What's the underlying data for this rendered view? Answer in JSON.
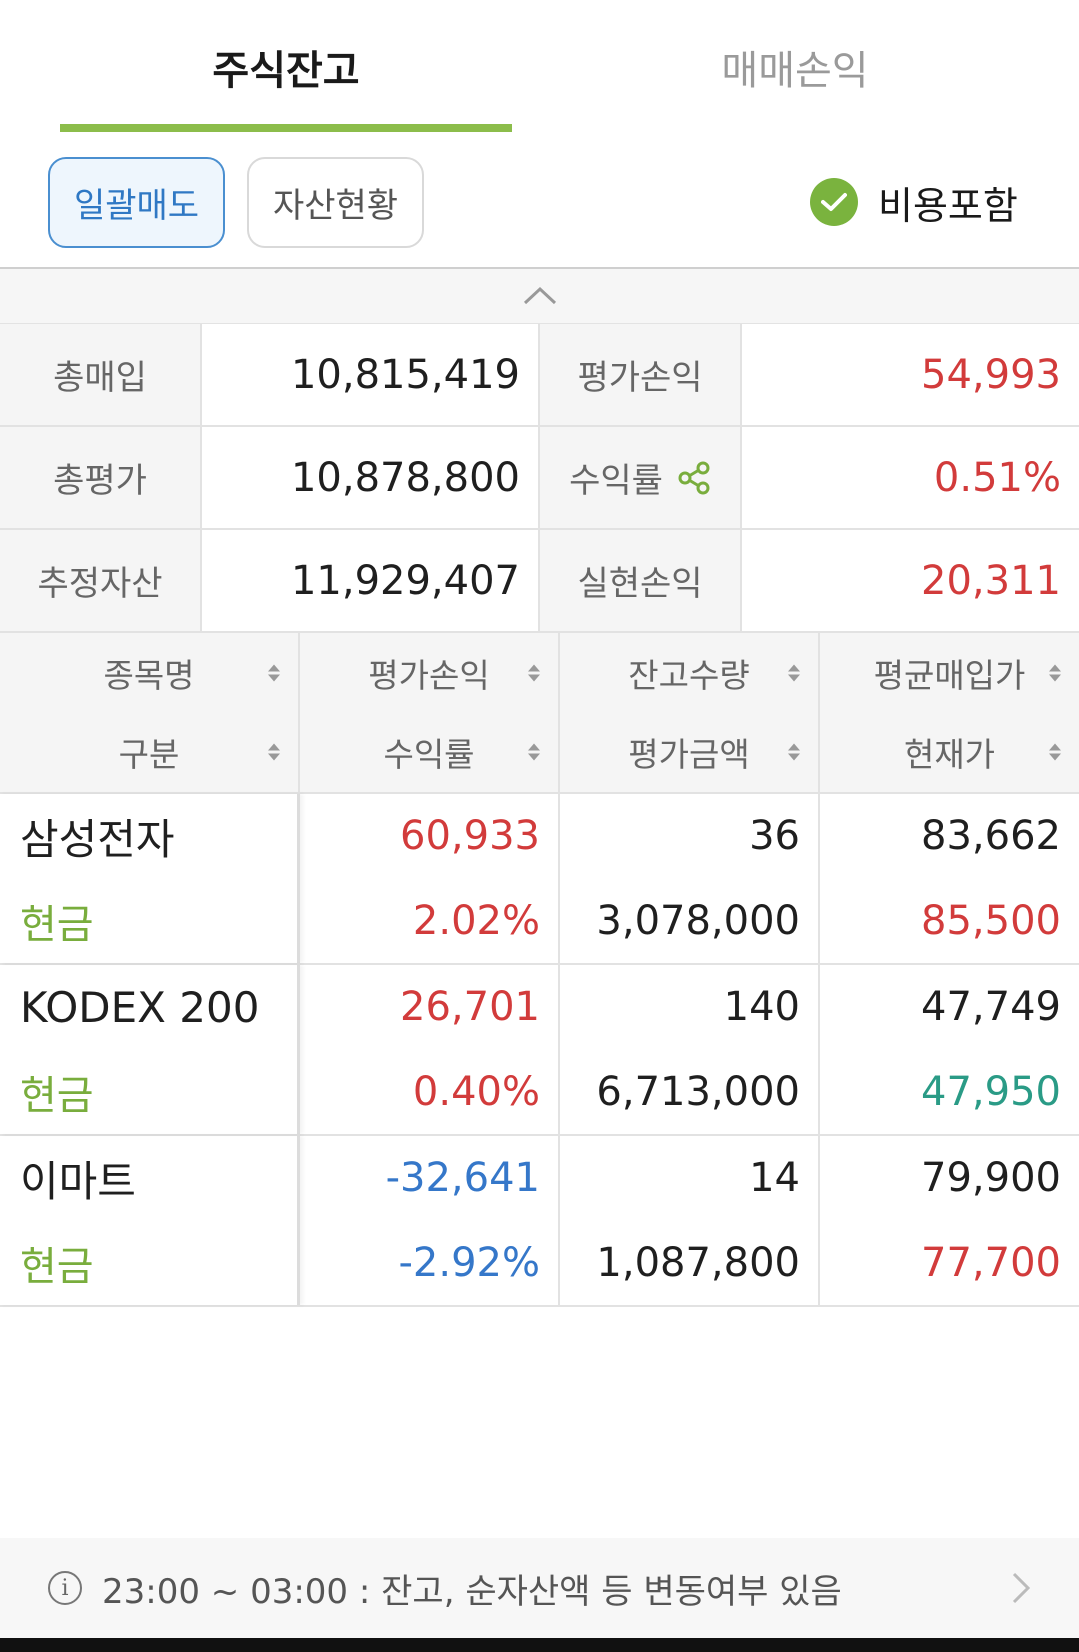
{
  "tabs": [
    {
      "label": "주식잔고",
      "active": true
    },
    {
      "label": "매매손익",
      "active": false
    }
  ],
  "buttons": {
    "bulk_sell": "일괄매도",
    "asset_status": "자산현황"
  },
  "fee_toggle": {
    "label": "비용포함",
    "checked": true
  },
  "summary": {
    "total_purchase": {
      "label": "총매입",
      "value": "10,815,419"
    },
    "eval_pl": {
      "label": "평가손익",
      "value": "54,993"
    },
    "total_eval": {
      "label": "총평가",
      "value": "10,878,800"
    },
    "return_rate": {
      "label": "수익률",
      "value": "0.51%"
    },
    "est_assets": {
      "label": "추정자산",
      "value": "11,929,407"
    },
    "realized_pl": {
      "label": "실현손익",
      "value": "20,311"
    }
  },
  "table": {
    "headers": {
      "name": "종목명",
      "category": "구분",
      "eval_pl": "평가손익",
      "return_rate": "수익률",
      "qty": "잔고수량",
      "eval_amount": "평가금액",
      "avg_price": "평균매입가",
      "cur_price": "현재가"
    },
    "rows": [
      {
        "name": "삼성전자",
        "category": "현금",
        "eval_pl": "60,933",
        "return_rate": "2.02%",
        "qty": "36",
        "eval_amount": "3,078,000",
        "avg_price": "83,662",
        "cur_price": "85,500"
      },
      {
        "name": "KODEX 200",
        "category": "현금",
        "eval_pl": "26,701",
        "return_rate": "0.40%",
        "qty": "140",
        "eval_amount": "6,713,000",
        "avg_price": "47,749",
        "cur_price": "47,950"
      },
      {
        "name": "이마트",
        "category": "현금",
        "eval_pl": "-32,641",
        "return_rate": "-2.92%",
        "qty": "14",
        "eval_amount": "1,087,800",
        "avg_price": "79,900",
        "cur_price": "77,700"
      }
    ]
  },
  "notice": {
    "text": "23:00 ~ 03:00 : 잔고, 순자산액 등 변동여부 있음"
  },
  "colors": {
    "accent_green": "#8cbd4b",
    "up_red": "#d23b3b",
    "down_blue": "#3577c9",
    "teal": "#2a9b86",
    "cash_green": "#79ad3d"
  },
  "icons": [
    "check-icon",
    "chevron-up-icon",
    "share-icon",
    "sort-icon",
    "info-icon",
    "chevron-right-icon"
  ]
}
